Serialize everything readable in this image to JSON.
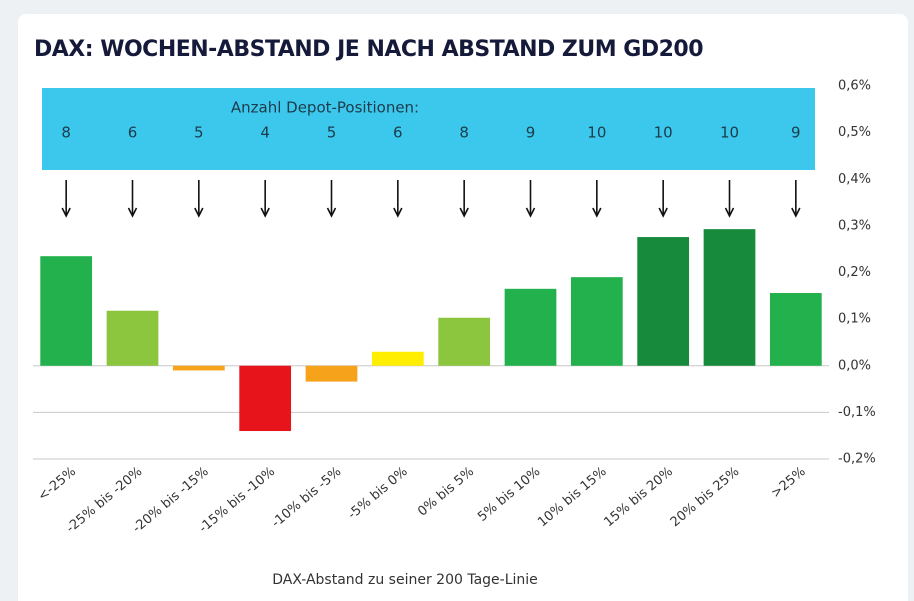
{
  "chart_data": {
    "type": "bar",
    "title": "DAX: WOCHEN-ABSTAND JE NACH ABSTAND ZUM GD200",
    "x_label": "DAX-Abstand zu seiner 200 Tage-Linie",
    "categories": [
      "<-25%",
      "-25% bis -20%",
      "-20% bis -15%",
      "-15% bis -10%",
      "-10% bis -5%",
      "-5% bis 0%",
      "0% bis 5%",
      "5% bis 10%",
      "10% bis 15%",
      "15% bis 20%",
      "20% bis 25%",
      ">25%"
    ],
    "values": [
      0.235,
      0.118,
      -0.01,
      -0.14,
      -0.034,
      0.03,
      0.103,
      0.165,
      0.19,
      0.276,
      0.293,
      0.156
    ],
    "colors": [
      "#22b14c",
      "#8cc63f",
      "#f7a21b",
      "#e8141c",
      "#f7a21b",
      "#ffee00",
      "#8cc63f",
      "#22b14c",
      "#22b14c",
      "#178a3c",
      "#178a3c",
      "#22b14c"
    ],
    "ylim": [
      -0.2,
      0.6
    ],
    "yticks": [
      {
        "value": -0.2,
        "label": "-0,2%"
      },
      {
        "value": -0.1,
        "label": "-0,1%"
      },
      {
        "value": 0,
        "label": "0,0%"
      },
      {
        "value": 0.1,
        "label": "0,1%"
      },
      {
        "value": 0.2,
        "label": "0,2%"
      },
      {
        "value": 0.3,
        "label": "0,3%"
      },
      {
        "value": 0.4,
        "label": "0,4%"
      },
      {
        "value": 0.5,
        "label": "0,5%"
      },
      {
        "value": 0.6,
        "label": "0,6%"
      }
    ],
    "grid": true,
    "annotation": {
      "label": "Anzahl Depot-Positionen:",
      "values": [
        8,
        6,
        5,
        4,
        5,
        6,
        8,
        9,
        10,
        10,
        10,
        9
      ]
    }
  }
}
